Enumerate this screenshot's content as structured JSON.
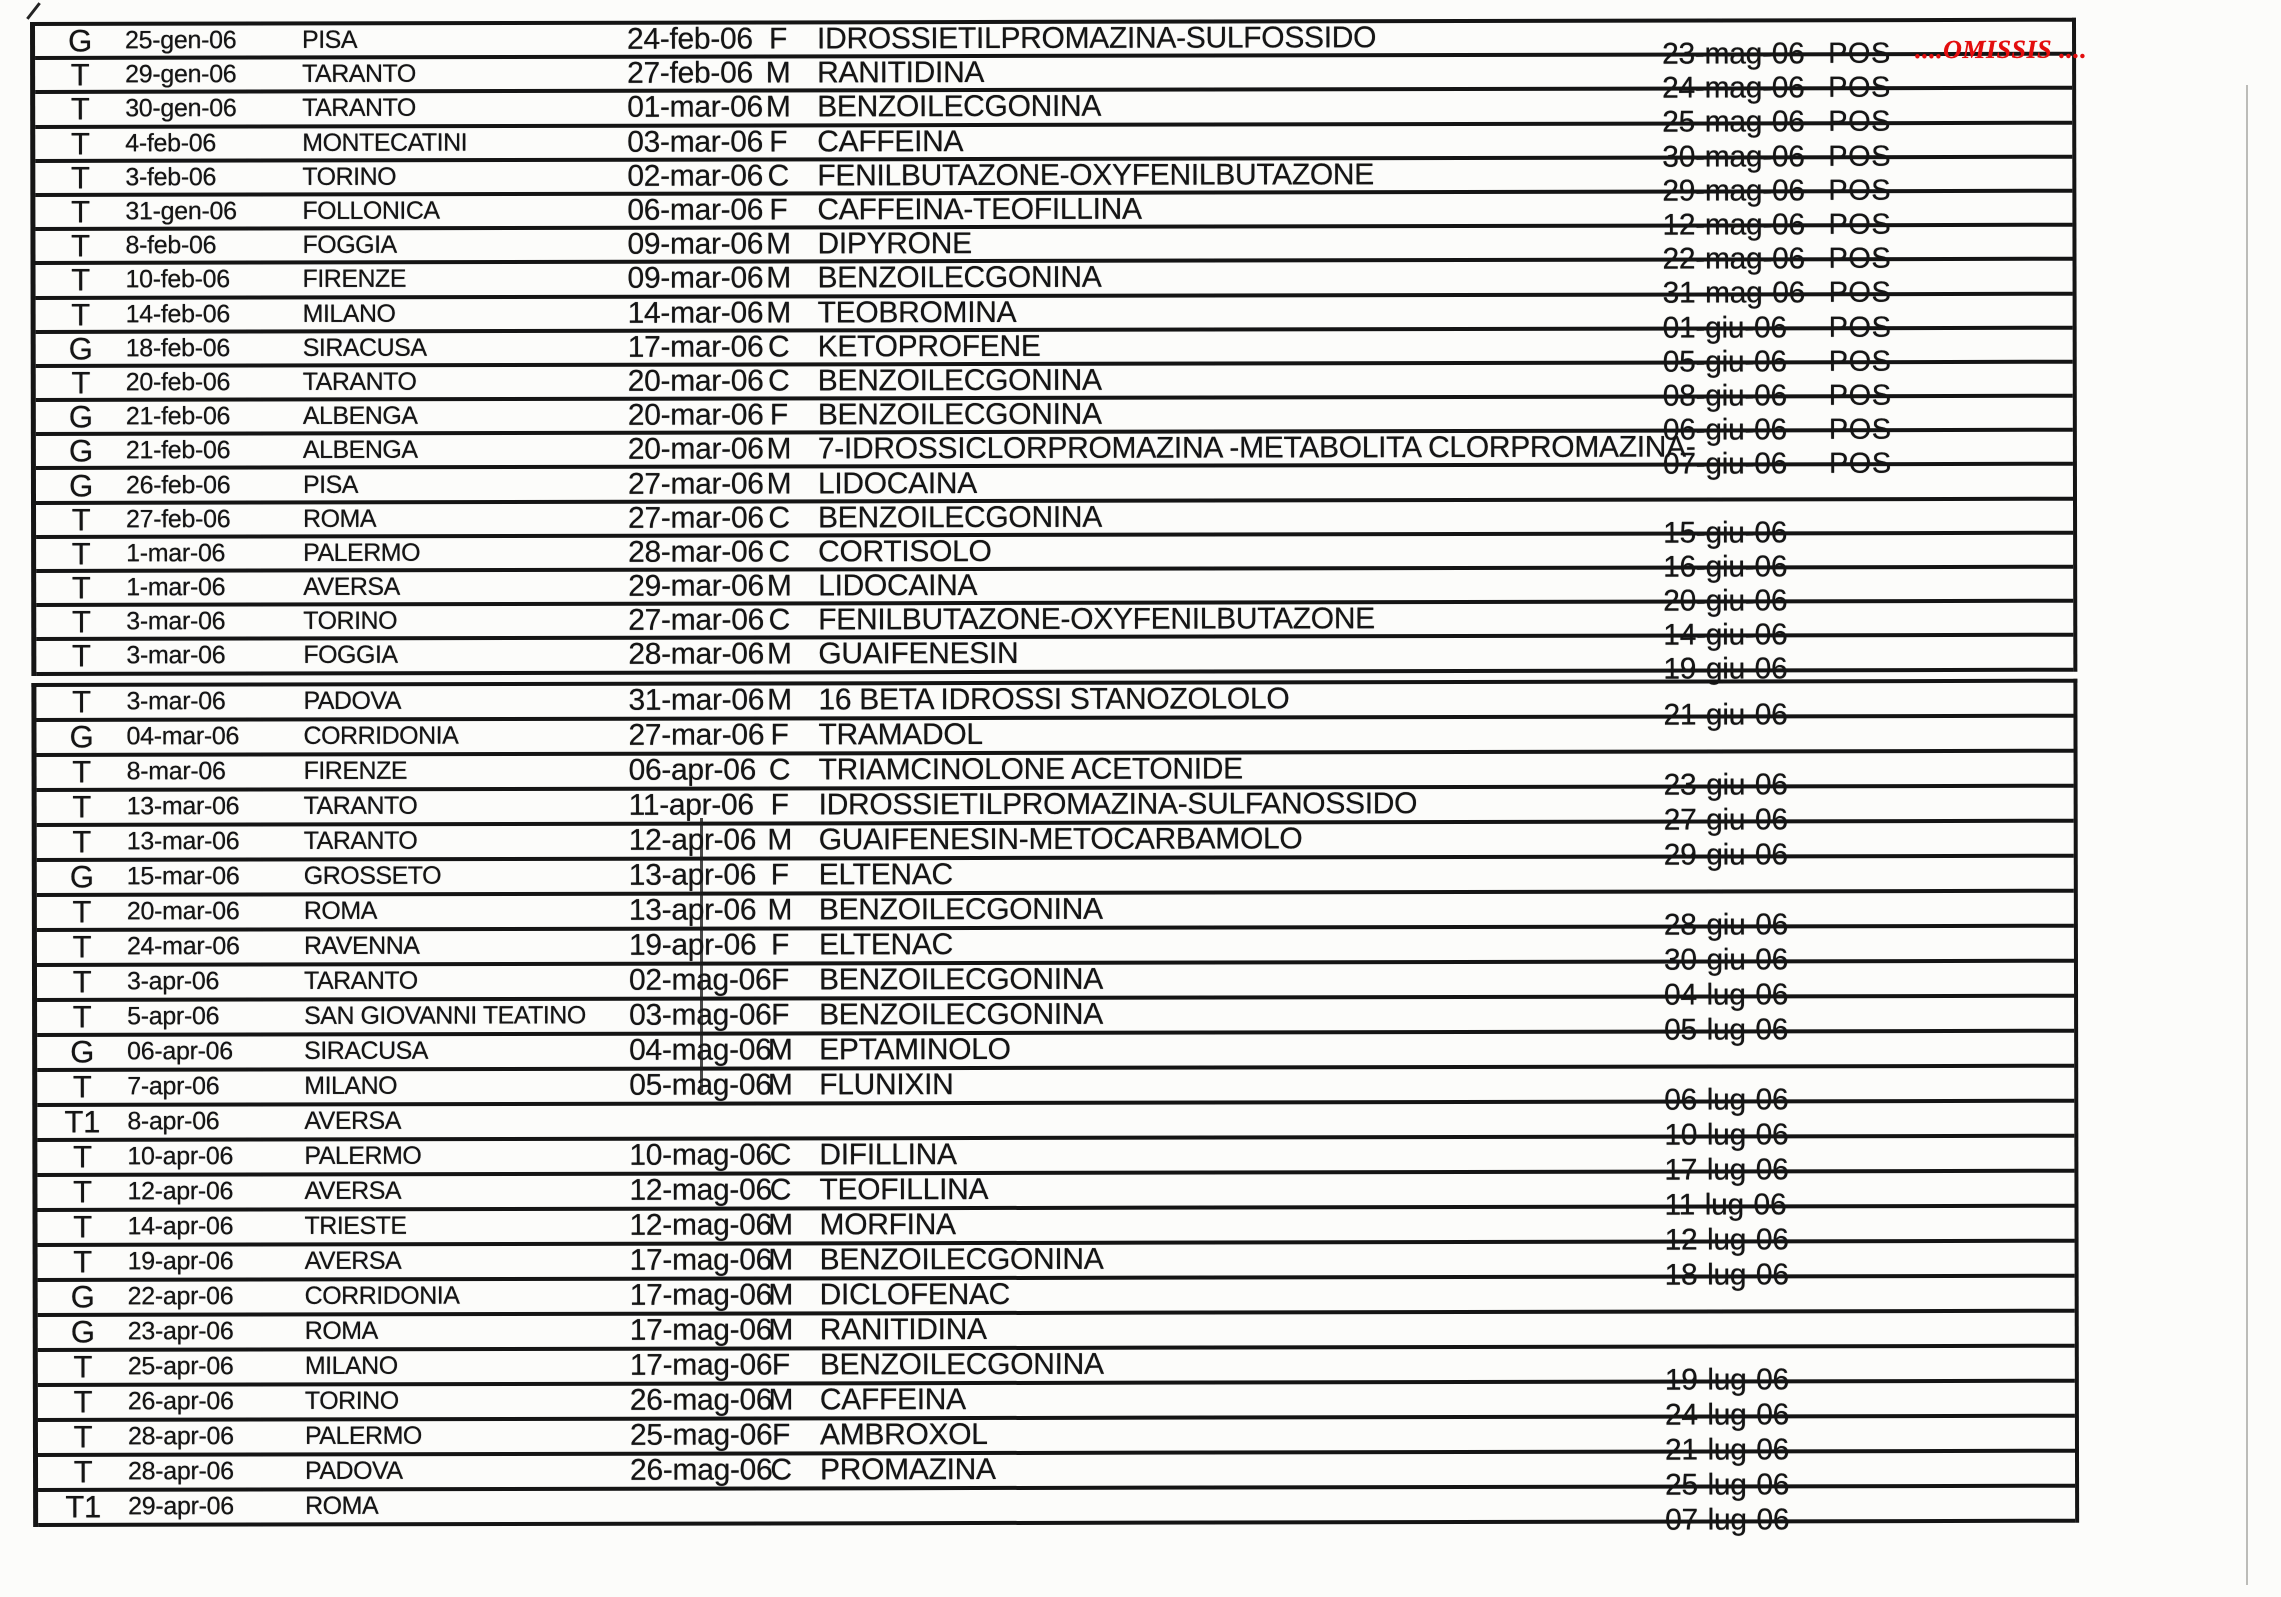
{
  "colors": {
    "ink": "#151515",
    "red": "#e30d0d",
    "paper": "#fcfcfa"
  },
  "omissis": {
    "label": "....OMISSIS ....",
    "block": 0,
    "row": 0
  },
  "table": {
    "column_semantics": [
      "sample_type",
      "sampling_date",
      "city",
      "arrival_date",
      "sex_code",
      "substance",
      "result_date",
      "result_flag"
    ],
    "blocks": [
      {
        "rows": [
          [
            "G",
            "25-gen-06",
            "PISA",
            "24-feb-06",
            "F",
            "IDROSSIETILPROMAZINA-SULFOSSIDO",
            "23-mag-06",
            "POS"
          ],
          [
            "T",
            "29-gen-06",
            "TARANTO",
            "27-feb-06",
            "M",
            "RANITIDINA",
            "24-mag-06",
            "POS"
          ],
          [
            "T",
            "30-gen-06",
            "TARANTO",
            "01-mar-06",
            "M",
            "BENZOILECGONINA",
            "25-mag-06",
            "POS"
          ],
          [
            "T",
            "4-feb-06",
            "MONTECATINI",
            "03-mar-06",
            "F",
            "CAFFEINA",
            "30-mag-06",
            "POS"
          ],
          [
            "T",
            "3-feb-06",
            "TORINO",
            "02-mar-06",
            "C",
            "FENILBUTAZONE-OXYFENILBUTAZONE",
            "29-mag-06",
            "POS"
          ],
          [
            "T",
            "31-gen-06",
            "FOLLONICA",
            "06-mar-06",
            "F",
            "CAFFEINA-TEOFILLINA",
            "12-mag-06",
            "POS"
          ],
          [
            "T",
            "8-feb-06",
            "FOGGIA",
            "09-mar-06",
            "M",
            "DIPYRONE",
            "22-mag-06",
            "POS"
          ],
          [
            "T",
            "10-feb-06",
            "FIRENZE",
            "09-mar-06",
            "M",
            "BENZOILECGONINA",
            "31-mag-06",
            "POS"
          ],
          [
            "T",
            "14-feb-06",
            "MILANO",
            "14-mar-06",
            "M",
            "TEOBROMINA",
            "01-giu-06",
            "POS"
          ],
          [
            "G",
            "18-feb-06",
            "SIRACUSA",
            "17-mar-06",
            "C",
            "KETOPROFENE",
            "05-giu-06",
            "POS"
          ],
          [
            "T",
            "20-feb-06",
            "TARANTO",
            "20-mar-06",
            "C",
            "BENZOILECGONINA",
            "08-giu-06",
            "POS"
          ],
          [
            "G",
            "21-feb-06",
            "ALBENGA",
            "20-mar-06",
            "F",
            "BENZOILECGONINA",
            "06-giu-06",
            "POS"
          ],
          [
            "G",
            "21-feb-06",
            "ALBENGA",
            "20-mar-06",
            "M",
            "7-IDROSSICLORPROMAZINA -METABOLITA CLORPROMAZINA-",
            "07-giu-06",
            "POS"
          ],
          [
            "G",
            "26-feb-06",
            "PISA",
            "27-mar-06",
            "M",
            "LIDOCAINA",
            "",
            ""
          ],
          [
            "T",
            "27-feb-06",
            "ROMA",
            "27-mar-06",
            "C",
            "BENZOILECGONINA",
            "15-giu-06",
            ""
          ],
          [
            "T",
            "1-mar-06",
            "PALERMO",
            "28-mar-06",
            "C",
            "CORTISOLO",
            "16-giu-06",
            ""
          ],
          [
            "T",
            "1-mar-06",
            "AVERSA",
            "29-mar-06",
            "M",
            "LIDOCAINA",
            "20-giu-06",
            ""
          ],
          [
            "T",
            "3-mar-06",
            "TORINO",
            "27-mar-06",
            "C",
            "FENILBUTAZONE-OXYFENILBUTAZONE",
            "14-giu-06",
            ""
          ],
          [
            "T",
            "3-mar-06",
            "FOGGIA",
            "28-mar-06",
            "M",
            "GUAIFENESIN",
            "19-giu-06",
            ""
          ]
        ]
      },
      {
        "rows": [
          [
            "T",
            "3-mar-06",
            "PADOVA",
            "31-mar-06",
            "M",
            "16 BETA IDROSSI STANOZOLOLO",
            "21-giu-06",
            ""
          ],
          [
            "G",
            "04-mar-06",
            "CORRIDONIA",
            "27-mar-06",
            "F",
            "TRAMADOL",
            "",
            ""
          ],
          [
            "T",
            "8-mar-06",
            "FIRENZE",
            "06-apr-06",
            "C",
            "TRIAMCINOLONE ACETONIDE",
            "23-giu-06",
            ""
          ],
          [
            "T",
            "13-mar-06",
            "TARANTO",
            "11-apr-06",
            "F",
            "IDROSSIETILPROMAZINA-SULFANOSSIDO",
            "27-giu-06",
            ""
          ],
          [
            "T",
            "13-mar-06",
            "TARANTO",
            "12-apr-06",
            "M",
            "GUAIFENESIN-METOCARBAMOLO",
            "29-giu-06",
            ""
          ],
          [
            "G",
            "15-mar-06",
            "GROSSETO",
            "13-apr-06",
            "F",
            "ELTENAC",
            "",
            ""
          ],
          [
            "T",
            "20-mar-06",
            "ROMA",
            "13-apr-06",
            "M",
            "BENZOILECGONINA",
            "28-giu-06",
            ""
          ],
          [
            "T",
            "24-mar-06",
            "RAVENNA",
            "19-apr-06",
            "F",
            "ELTENAC",
            "30-giu-06",
            ""
          ],
          [
            "T",
            "3-apr-06",
            "TARANTO",
            "02-mag-06",
            "F",
            "BENZOILECGONINA",
            "04-lug-06",
            ""
          ],
          [
            "T",
            "5-apr-06",
            "SAN GIOVANNI TEATINO",
            "03-mag-06",
            "F",
            "BENZOILECGONINA",
            "05-lug-06",
            ""
          ],
          [
            "G",
            "06-apr-06",
            "SIRACUSA",
            "04-mag-06",
            "M",
            "EPTAMINOLO",
            "",
            ""
          ],
          [
            "T",
            "7-apr-06",
            "MILANO",
            "05-mag-06",
            "M",
            "FLUNIXIN",
            "06-lug-06",
            ""
          ],
          [
            "T1",
            "8-apr-06",
            "AVERSA",
            "",
            "",
            "",
            "10-lug-06",
            ""
          ],
          [
            "T",
            "10-apr-06",
            "PALERMO",
            "10-mag-06",
            "C",
            "DIFILLINA",
            "17-lug-06",
            ""
          ],
          [
            "T",
            "12-apr-06",
            "AVERSA",
            "12-mag-06",
            "C",
            "TEOFILLINA",
            "11-lug-06",
            ""
          ],
          [
            "T",
            "14-apr-06",
            "TRIESTE",
            "12-mag-06",
            "M",
            "MORFINA",
            "12-lug-06",
            ""
          ],
          [
            "T",
            "19-apr-06",
            "AVERSA",
            "17-mag-06",
            "M",
            "BENZOILECGONINA",
            "18-lug-06",
            ""
          ],
          [
            "G",
            "22-apr-06",
            "CORRIDONIA",
            "17-mag-06",
            "M",
            "DICLOFENAC",
            "",
            ""
          ],
          [
            "G",
            "23-apr-06",
            "ROMA",
            "17-mag-06",
            "M",
            "RANITIDINA",
            "",
            ""
          ],
          [
            "T",
            "25-apr-06",
            "MILANO",
            "17-mag-06",
            "F",
            "BENZOILECGONINA",
            "19-lug-06",
            ""
          ],
          [
            "T",
            "26-apr-06",
            "TORINO",
            "26-mag-06",
            "M",
            "CAFFEINA",
            "24-lug-06",
            ""
          ],
          [
            "T",
            "28-apr-06",
            "PALERMO",
            "25-mag-06",
            "F",
            "AMBROXOL",
            "21-lug-06",
            ""
          ],
          [
            "T",
            "28-apr-06",
            "PADOVA",
            "26-mag-06",
            "C",
            "PROMAZINA",
            "25-lug-06",
            ""
          ],
          [
            "T1",
            "29-apr-06",
            "ROMA",
            "",
            "",
            "",
            "07-lug-06",
            ""
          ]
        ]
      }
    ]
  }
}
